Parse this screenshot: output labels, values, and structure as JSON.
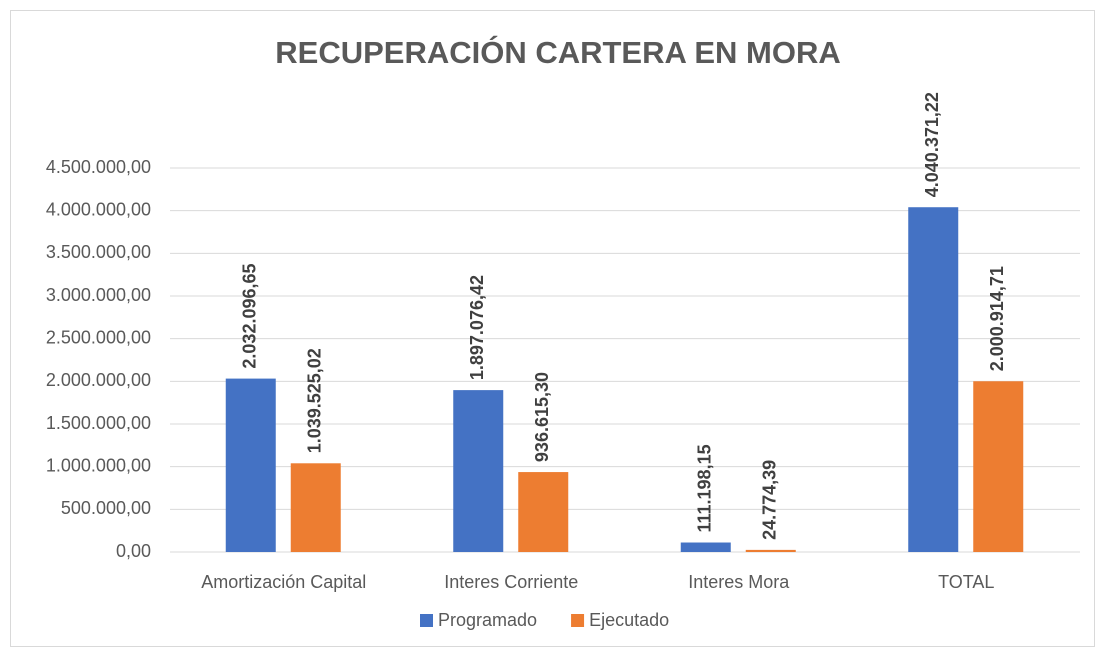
{
  "chart_data": {
    "type": "bar",
    "title": "RECUPERACIÓN CARTERA EN MORA",
    "categories": [
      "Amortización Capital",
      "Interes Corriente",
      "Interes Mora",
      "TOTAL"
    ],
    "series": [
      {
        "name": "Programado",
        "color": "#4472c4",
        "values": [
          2032096.65,
          1897076.42,
          111198.15,
          4040371.22
        ],
        "value_labels": [
          "2.032.096,65",
          "1.897.076,42",
          "111.198,15",
          "4.040.371,22"
        ]
      },
      {
        "name": "Ejecutado",
        "color": "#ed7d31",
        "values": [
          1039525.02,
          936615.3,
          24774.39,
          2000914.71
        ],
        "value_labels": [
          "1.039.525,02",
          "936.615,30",
          "24.774,39",
          "2.000.914,71"
        ]
      }
    ],
    "ylim": [
      0,
      4500000
    ],
    "yticks": [
      {
        "value": 0,
        "label": "0,00"
      },
      {
        "value": 500000,
        "label": "500.000,00"
      },
      {
        "value": 1000000,
        "label": "1.000.000,00"
      },
      {
        "value": 1500000,
        "label": "1.500.000,00"
      },
      {
        "value": 2000000,
        "label": "2.000.000,00"
      },
      {
        "value": 2500000,
        "label": "2.500.000,00"
      },
      {
        "value": 3000000,
        "label": "3.000.000,00"
      },
      {
        "value": 3500000,
        "label": "3.500.000,00"
      },
      {
        "value": 4000000,
        "label": "4.000.000,00"
      },
      {
        "value": 4500000,
        "label": "4.500.000,00"
      }
    ],
    "grid": true,
    "legend": "bottom"
  }
}
